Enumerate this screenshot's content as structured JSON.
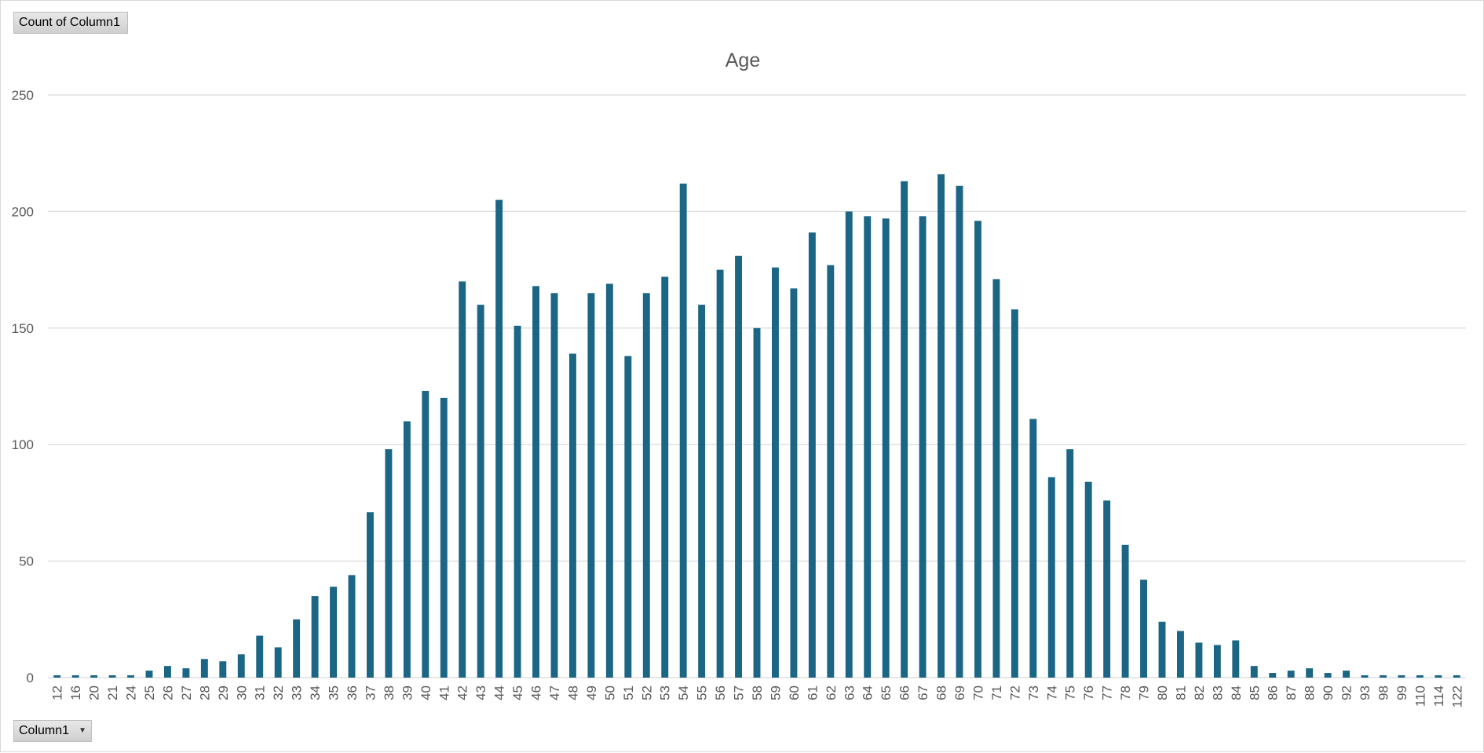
{
  "chart_data": {
    "type": "bar",
    "title": "Age",
    "xlabel": "",
    "ylabel": "",
    "ylim": [
      0,
      250
    ],
    "yticks": [
      0,
      50,
      100,
      150,
      200,
      250
    ],
    "grid": true,
    "legend": "none",
    "bar_color": "#1b6585",
    "categories": [
      "12",
      "16",
      "20",
      "21",
      "24",
      "25",
      "26",
      "27",
      "28",
      "29",
      "30",
      "31",
      "32",
      "33",
      "34",
      "35",
      "36",
      "37",
      "38",
      "39",
      "40",
      "41",
      "42",
      "43",
      "44",
      "45",
      "46",
      "47",
      "48",
      "49",
      "50",
      "51",
      "52",
      "53",
      "54",
      "55",
      "56",
      "57",
      "58",
      "59",
      "60",
      "61",
      "62",
      "63",
      "64",
      "65",
      "66",
      "67",
      "68",
      "69",
      "70",
      "71",
      "72",
      "73",
      "74",
      "75",
      "76",
      "77",
      "78",
      "79",
      "80",
      "81",
      "82",
      "83",
      "84",
      "85",
      "86",
      "87",
      "88",
      "90",
      "92",
      "93",
      "98",
      "99",
      "110",
      "114",
      "122"
    ],
    "values": [
      1,
      1,
      1,
      1,
      1,
      3,
      5,
      4,
      8,
      7,
      10,
      18,
      13,
      25,
      35,
      39,
      44,
      71,
      98,
      110,
      123,
      120,
      170,
      160,
      205,
      151,
      168,
      165,
      139,
      165,
      169,
      138,
      165,
      172,
      212,
      160,
      175,
      181,
      150,
      176,
      167,
      191,
      177,
      200,
      198,
      197,
      213,
      198,
      216,
      211,
      196,
      171,
      158,
      111,
      86,
      98,
      84,
      76,
      57,
      42,
      24,
      20,
      15,
      14,
      16,
      5,
      2,
      3,
      4,
      2,
      3,
      1,
      1,
      1,
      1,
      1,
      1
    ]
  },
  "pivot": {
    "values_field": "Count of Column1",
    "axis_field": "Column1",
    "axis_dropdown_icon": "chevron-down-icon"
  },
  "colors": {
    "bar": "#1b6585",
    "grid": "#d9d9d9",
    "text": "#595959"
  }
}
